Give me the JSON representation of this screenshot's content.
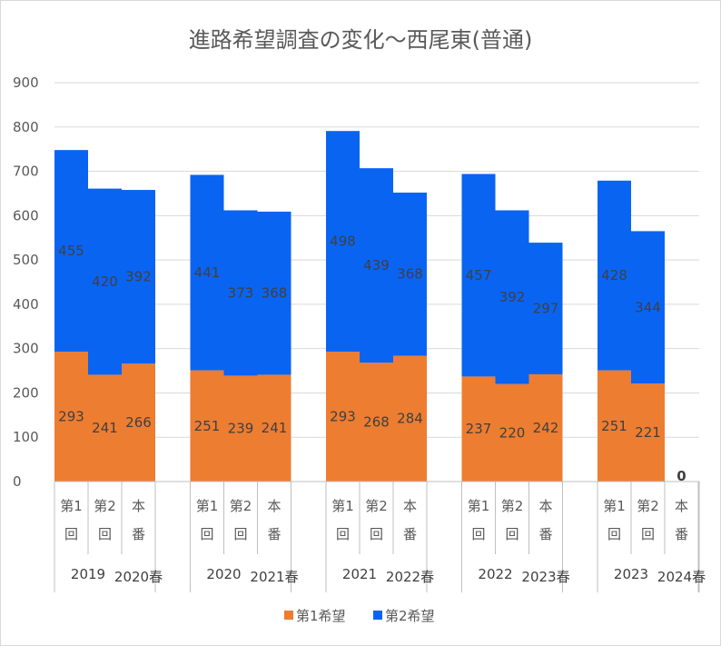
{
  "chart_data": {
    "type": "bar",
    "stacked": true,
    "title": "進路希望調査の変化～西尾東(普通)",
    "ylim": [
      0,
      900
    ],
    "yticks": [
      0,
      100,
      200,
      300,
      400,
      500,
      600,
      700,
      800,
      900
    ],
    "grid": true,
    "legend_position": "bottom",
    "series": [
      {
        "name": "第1希望",
        "color": "#ED7D31",
        "values": [
          293,
          241,
          266,
          251,
          239,
          241,
          293,
          268,
          284,
          237,
          220,
          242,
          251,
          221,
          0
        ]
      },
      {
        "name": "第2希望",
        "color": "#0A64F2",
        "values": [
          455,
          420,
          392,
          441,
          373,
          368,
          498,
          439,
          368,
          457,
          392,
          297,
          428,
          344,
          null
        ]
      }
    ],
    "categories": [
      "第1回",
      "第2回",
      "本番",
      "第1回",
      "第2回",
      "本番",
      "第1回",
      "第2回",
      "本番",
      "第1回",
      "第2回",
      "本番",
      "第1回",
      "第2回",
      "本番"
    ],
    "category_groups": [
      {
        "survey_year": "2019",
        "exam_label": "2020春"
      },
      {
        "survey_year": "2020",
        "exam_label": "2021春"
      },
      {
        "survey_year": "2021",
        "exam_label": "2022春"
      },
      {
        "survey_year": "2022",
        "exam_label": "2023春"
      },
      {
        "survey_year": "2023",
        "exam_label": "2024春"
      }
    ],
    "category_sub_labels": [
      {
        "top": "第1",
        "bottom": "回"
      },
      {
        "top": "第2",
        "bottom": "回"
      },
      {
        "top": "本",
        "bottom": "番"
      }
    ],
    "special_labels": [
      {
        "index": 14,
        "text": "0"
      }
    ]
  }
}
